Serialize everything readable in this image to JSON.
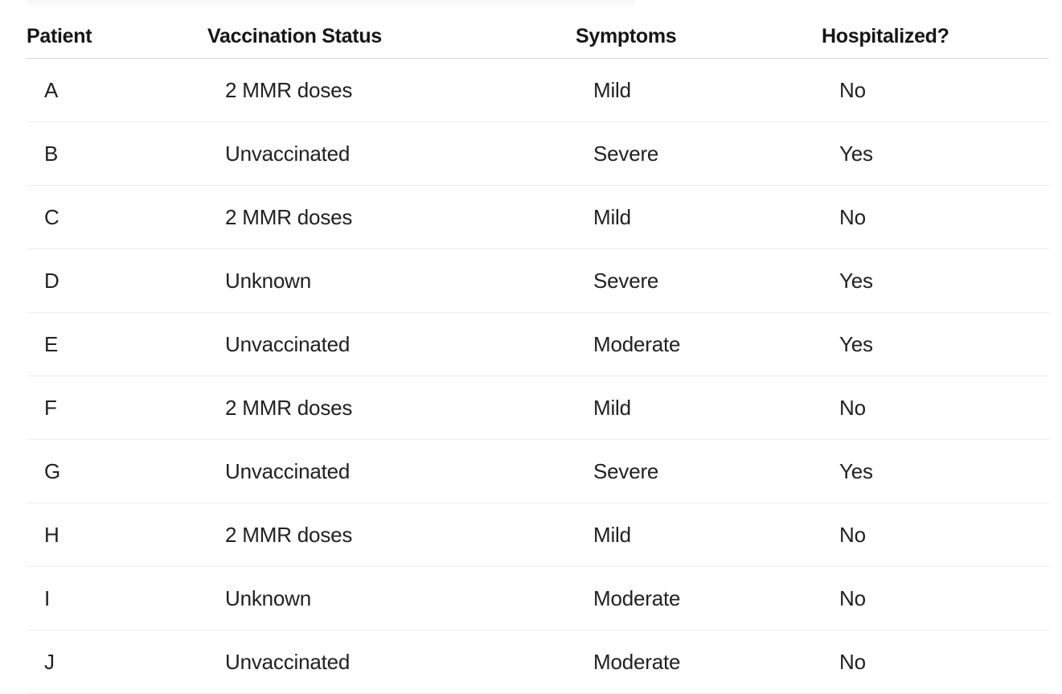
{
  "page": {
    "background": "#ffffff"
  },
  "colors": {
    "header_text": "#161616",
    "cell_text": "#212121",
    "header_divider": "#d6d6d6",
    "row_divider": "#ededed",
    "top_remnant_fill": "#f2f2f2"
  },
  "table": {
    "headers": [
      "Patient",
      "Vaccination Status",
      "Symptoms",
      "Hospitalized?"
    ],
    "column_keys": [
      "patient",
      "vaccination-status",
      "symptoms",
      "hospitalized"
    ],
    "rows": [
      [
        "A",
        "2 MMR doses",
        "Mild",
        "No"
      ],
      [
        "B",
        "Unvaccinated",
        "Severe",
        "Yes"
      ],
      [
        "C",
        "2 MMR doses",
        "Mild",
        "No"
      ],
      [
        "D",
        "Unknown",
        "Severe",
        "Yes"
      ],
      [
        "E",
        "Unvaccinated",
        "Moderate",
        "Yes"
      ],
      [
        "F",
        "2 MMR doses",
        "Mild",
        "No"
      ],
      [
        "G",
        "Unvaccinated",
        "Severe",
        "Yes"
      ],
      [
        "H",
        "2 MMR doses",
        "Mild",
        "No"
      ],
      [
        "I",
        "Unknown",
        "Moderate",
        "No"
      ],
      [
        "J",
        "Unvaccinated",
        "Moderate",
        "No"
      ]
    ]
  },
  "chart_data": {
    "type": "table",
    "title": "",
    "columns": [
      "Patient",
      "Vaccination Status",
      "Symptoms",
      "Hospitalized?"
    ],
    "rows": [
      {
        "patient": "A",
        "vaccination_status": "2 MMR doses",
        "symptoms": "Mild",
        "hospitalized": "No"
      },
      {
        "patient": "B",
        "vaccination_status": "Unvaccinated",
        "symptoms": "Severe",
        "hospitalized": "Yes"
      },
      {
        "patient": "C",
        "vaccination_status": "2 MMR doses",
        "symptoms": "Mild",
        "hospitalized": "No"
      },
      {
        "patient": "D",
        "vaccination_status": "Unknown",
        "symptoms": "Severe",
        "hospitalized": "Yes"
      },
      {
        "patient": "E",
        "vaccination_status": "Unvaccinated",
        "symptoms": "Moderate",
        "hospitalized": "Yes"
      },
      {
        "patient": "F",
        "vaccination_status": "2 MMR doses",
        "symptoms": "Mild",
        "hospitalized": "No"
      },
      {
        "patient": "G",
        "vaccination_status": "Unvaccinated",
        "symptoms": "Severe",
        "hospitalized": "Yes"
      },
      {
        "patient": "H",
        "vaccination_status": "2 MMR doses",
        "symptoms": "Mild",
        "hospitalized": "No"
      },
      {
        "patient": "I",
        "vaccination_status": "Unknown",
        "symptoms": "Moderate",
        "hospitalized": "No"
      },
      {
        "patient": "J",
        "vaccination_status": "Unvaccinated",
        "symptoms": "Moderate",
        "hospitalized": "No"
      }
    ],
    "layout": {
      "header_row": true,
      "row_count": 10,
      "grid": "horizontal-dividers-only",
      "last_row_divider": "cut off by bottom edge of screenshot"
    }
  }
}
